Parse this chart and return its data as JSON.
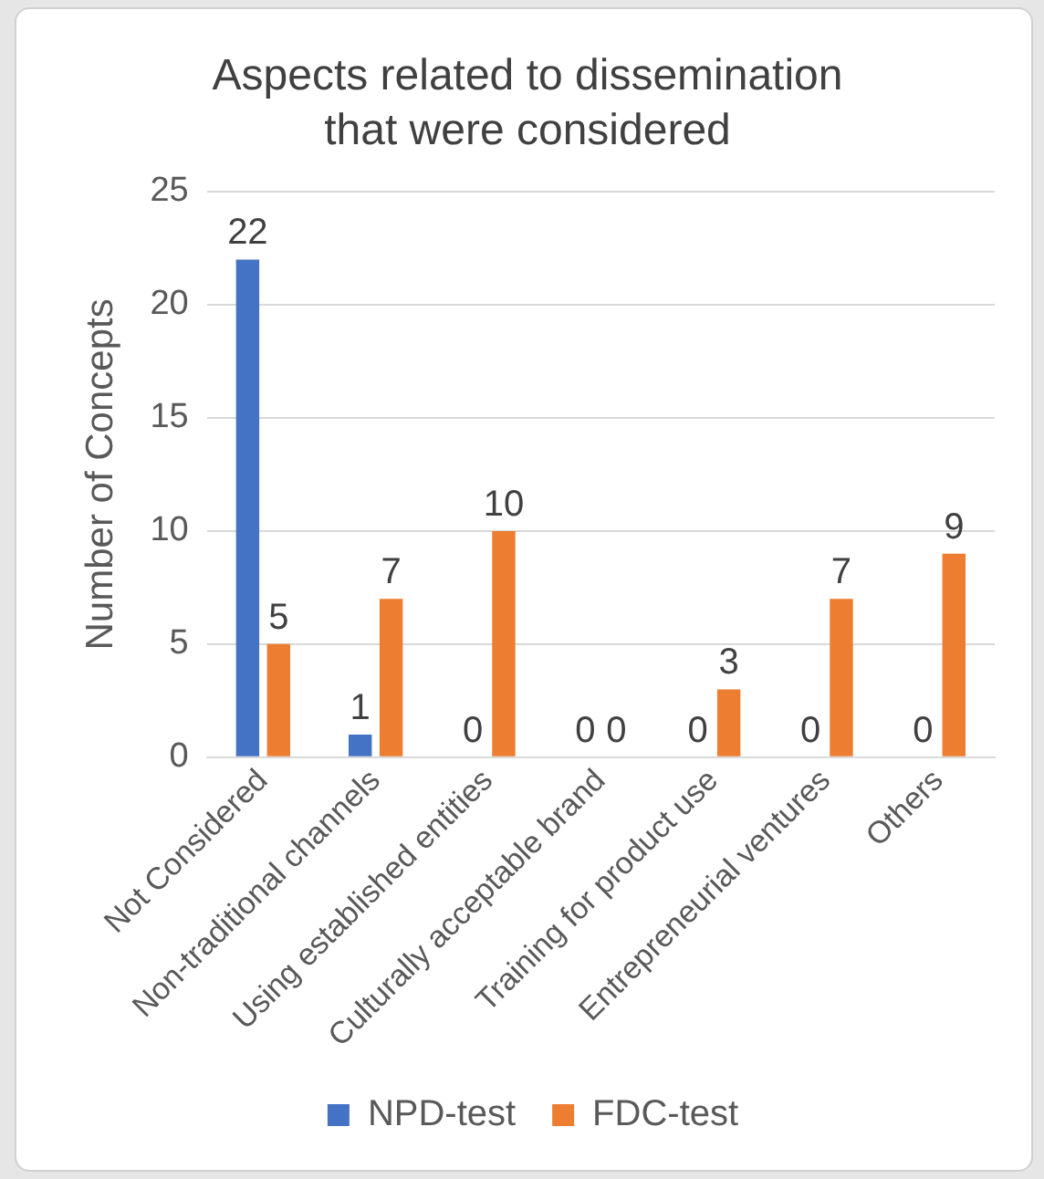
{
  "chart_data": {
    "type": "bar",
    "title": "Aspects related to dissemination that were considered",
    "ylabel": "Number of Concepts",
    "categories": [
      "Not Considered",
      "Non-traditional channels",
      "Using established entities",
      "Culturally acceptable brand",
      "Training for product use",
      "Entrepreneurial ventures",
      "Others"
    ],
    "series": [
      {
        "name": "NPD-test",
        "color": "#4472c4",
        "values": [
          22,
          1,
          0,
          0,
          0,
          0,
          0
        ]
      },
      {
        "name": "FDC-test",
        "color": "#ed7d31",
        "values": [
          5,
          7,
          10,
          0,
          3,
          7,
          9
        ]
      }
    ],
    "ylim": [
      0,
      25
    ],
    "yticks": [
      0,
      5,
      10,
      15,
      20,
      25
    ],
    "grid": "y",
    "legend": "bottom",
    "data_labels": true
  }
}
